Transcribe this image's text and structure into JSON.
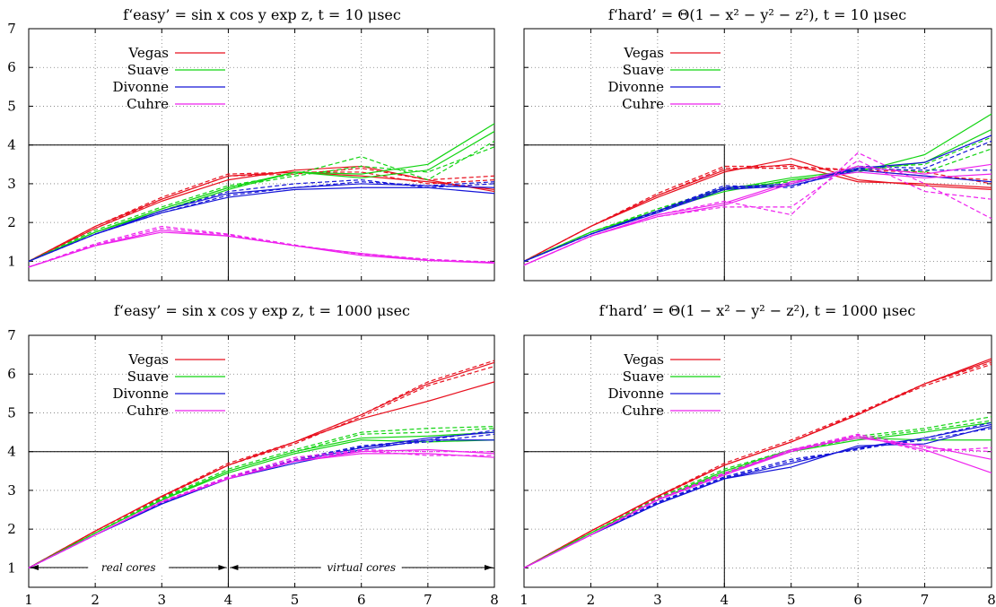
{
  "chart_data": [
    {
      "type": "line",
      "title": "f‘easy’ = sin x cos y exp z,    t = 10 μsec",
      "xlim": [
        1,
        8
      ],
      "ylim": [
        0.5,
        7
      ],
      "xticks": [
        "1",
        "2",
        "3",
        "4",
        "5",
        "6",
        "7",
        "8"
      ],
      "yticks": [
        "1",
        "2",
        "3",
        "4",
        "5",
        "6",
        "7"
      ],
      "legend": [
        "Vegas",
        "Suave",
        "Divonne",
        "Cuhre"
      ],
      "colors": {
        "Vegas": "#e8101e",
        "Suave": "#12d412",
        "Divonne": "#1414d8",
        "Cuhre": "#ee22ee"
      },
      "box": [
        [
          1,
          4
        ],
        [
          4,
          4
        ],
        [
          4,
          0.5
        ]
      ],
      "x": [
        1,
        2,
        3,
        4,
        5,
        6,
        7,
        8
      ],
      "series": [
        {
          "name": "Vegas",
          "style": "solid",
          "values": [
            1,
            1.9,
            2.6,
            3.2,
            3.3,
            3.2,
            3.05,
            2.85
          ]
        },
        {
          "name": "Vegas",
          "style": "solid",
          "values": [
            1,
            1.85,
            2.55,
            3.1,
            3.35,
            3.45,
            3.1,
            2.8
          ]
        },
        {
          "name": "Vegas",
          "style": "dashed",
          "values": [
            1,
            1.9,
            2.65,
            3.25,
            3.3,
            3.3,
            3.0,
            3.1
          ]
        },
        {
          "name": "Vegas",
          "style": "dashed",
          "values": [
            1,
            1.85,
            2.6,
            3.2,
            3.25,
            3.4,
            3.1,
            3.2
          ]
        },
        {
          "name": "Suave",
          "style": "solid",
          "values": [
            1,
            1.75,
            2.35,
            2.9,
            3.3,
            3.25,
            3.5,
            4.55
          ]
        },
        {
          "name": "Suave",
          "style": "solid",
          "values": [
            1,
            1.75,
            2.3,
            2.85,
            3.3,
            3.15,
            3.35,
            4.35
          ]
        },
        {
          "name": "Suave",
          "style": "dashed",
          "values": [
            1,
            1.8,
            2.4,
            2.95,
            3.25,
            3.7,
            3.1,
            4.1
          ]
        },
        {
          "name": "Suave",
          "style": "dashed",
          "values": [
            1,
            1.75,
            2.35,
            2.9,
            3.2,
            3.45,
            3.3,
            3.95
          ]
        },
        {
          "name": "Divonne",
          "style": "solid",
          "values": [
            1,
            1.7,
            2.25,
            2.65,
            2.85,
            2.9,
            2.9,
            2.75
          ]
        },
        {
          "name": "Divonne",
          "style": "solid",
          "values": [
            1,
            1.7,
            2.3,
            2.75,
            2.9,
            3.0,
            2.95,
            2.9
          ]
        },
        {
          "name": "Divonne",
          "style": "dashed",
          "values": [
            1,
            1.7,
            2.3,
            2.8,
            3.0,
            3.1,
            2.9,
            3.0
          ]
        },
        {
          "name": "Divonne",
          "style": "dashed",
          "values": [
            1,
            1.7,
            2.25,
            2.7,
            2.9,
            3.05,
            2.95,
            3.05
          ]
        },
        {
          "name": "Cuhre",
          "style": "solid",
          "values": [
            0.85,
            1.4,
            1.75,
            1.65,
            1.4,
            1.15,
            1.02,
            0.95
          ]
        },
        {
          "name": "Cuhre",
          "style": "solid",
          "values": [
            0.85,
            1.4,
            1.8,
            1.65,
            1.4,
            1.2,
            1.02,
            0.97
          ]
        },
        {
          "name": "Cuhre",
          "style": "dashed",
          "values": [
            0.85,
            1.45,
            1.9,
            1.7,
            1.42,
            1.18,
            1.05,
            0.95
          ]
        },
        {
          "name": "Cuhre",
          "style": "dashed",
          "values": [
            0.85,
            1.42,
            1.85,
            1.68,
            1.4,
            1.2,
            1.05,
            0.98
          ]
        }
      ]
    },
    {
      "type": "line",
      "title": "f‘hard’ = Θ(1 − x² − y² − z²),    t = 10 μsec",
      "xlim": [
        1,
        8
      ],
      "ylim": [
        0.5,
        7
      ],
      "xticks": [
        "1",
        "2",
        "3",
        "4",
        "5",
        "6",
        "7",
        "8"
      ],
      "yticks": [],
      "legend": [
        "Vegas",
        "Suave",
        "Divonne",
        "Cuhre"
      ],
      "colors": {
        "Vegas": "#e8101e",
        "Suave": "#12d412",
        "Divonne": "#1414d8",
        "Cuhre": "#ee22ee"
      },
      "box": [
        [
          1,
          4
        ],
        [
          4,
          4
        ],
        [
          4,
          0.5
        ]
      ],
      "x": [
        1,
        2,
        3,
        4,
        5,
        6,
        7,
        8
      ],
      "series": [
        {
          "name": "Vegas",
          "style": "solid",
          "values": [
            1,
            1.9,
            2.7,
            3.35,
            3.5,
            3.05,
            3.0,
            2.9
          ]
        },
        {
          "name": "Vegas",
          "style": "solid",
          "values": [
            1,
            1.9,
            2.65,
            3.3,
            3.65,
            3.1,
            2.95,
            2.85
          ]
        },
        {
          "name": "Vegas",
          "style": "dashed",
          "values": [
            1,
            1.9,
            2.75,
            3.45,
            3.45,
            3.35,
            3.2,
            3.1
          ]
        },
        {
          "name": "Vegas",
          "style": "dashed",
          "values": [
            1,
            1.9,
            2.7,
            3.4,
            3.4,
            3.35,
            3.3,
            3.0
          ]
        },
        {
          "name": "Suave",
          "style": "solid",
          "values": [
            1,
            1.75,
            2.3,
            2.8,
            3.1,
            3.3,
            3.75,
            4.8
          ]
        },
        {
          "name": "Suave",
          "style": "solid",
          "values": [
            1,
            1.75,
            2.3,
            2.85,
            3.15,
            3.35,
            3.55,
            4.4
          ]
        },
        {
          "name": "Suave",
          "style": "dashed",
          "values": [
            1,
            1.75,
            2.35,
            2.9,
            3.05,
            3.4,
            3.5,
            4.2
          ]
        },
        {
          "name": "Suave",
          "style": "dashed",
          "values": [
            1,
            1.75,
            2.35,
            2.85,
            3.0,
            3.45,
            3.3,
            3.9
          ]
        },
        {
          "name": "Divonne",
          "style": "solid",
          "values": [
            1,
            1.7,
            2.25,
            2.85,
            2.95,
            3.35,
            3.2,
            3.05
          ]
        },
        {
          "name": "Divonne",
          "style": "solid",
          "values": [
            1,
            1.7,
            2.3,
            2.9,
            3.0,
            3.4,
            3.55,
            4.25
          ]
        },
        {
          "name": "Divonne",
          "style": "dashed",
          "values": [
            1,
            1.7,
            2.3,
            2.95,
            2.9,
            3.45,
            3.4,
            4.1
          ]
        },
        {
          "name": "Divonne",
          "style": "dashed",
          "values": [
            1,
            1.7,
            2.28,
            2.88,
            2.95,
            3.38,
            3.35,
            3.35
          ]
        },
        {
          "name": "Cuhre",
          "style": "solid",
          "values": [
            0.9,
            1.65,
            2.15,
            2.45,
            3.0,
            3.45,
            3.25,
            3.5
          ]
        },
        {
          "name": "Cuhre",
          "style": "solid",
          "values": [
            0.9,
            1.65,
            2.2,
            2.5,
            3.05,
            3.3,
            3.15,
            3.25
          ]
        },
        {
          "name": "Cuhre",
          "style": "dashed",
          "values": [
            0.9,
            1.65,
            2.2,
            2.55,
            2.2,
            3.8,
            3.0,
            2.1
          ]
        },
        {
          "name": "Cuhre",
          "style": "dashed",
          "values": [
            0.9,
            1.65,
            2.15,
            2.4,
            2.4,
            3.6,
            2.8,
            2.6
          ]
        }
      ]
    },
    {
      "type": "line",
      "title": "f‘easy’ = sin x cos y exp z,    t = 1000 μsec",
      "xlim": [
        1,
        8
      ],
      "ylim": [
        0.5,
        7
      ],
      "xticks": [
        "1",
        "2",
        "3",
        "4",
        "5",
        "6",
        "7",
        "8"
      ],
      "yticks": [
        "1",
        "2",
        "3",
        "4",
        "5",
        "6",
        "7"
      ],
      "legend": [
        "Vegas",
        "Suave",
        "Divonne",
        "Cuhre"
      ],
      "colors": {
        "Vegas": "#e8101e",
        "Suave": "#12d412",
        "Divonne": "#1414d8",
        "Cuhre": "#ee22ee"
      },
      "box": [
        [
          1,
          4
        ],
        [
          4,
          4
        ],
        [
          4,
          0.5
        ]
      ],
      "x": [
        1,
        2,
        3,
        4,
        5,
        6,
        7,
        8
      ],
      "series": [
        {
          "name": "Vegas",
          "style": "solid",
          "values": [
            1,
            1.95,
            2.85,
            3.65,
            4.25,
            4.85,
            5.3,
            5.8
          ]
        },
        {
          "name": "Vegas",
          "style": "solid",
          "values": [
            1,
            1.95,
            2.85,
            3.65,
            4.25,
            4.95,
            5.75,
            6.3
          ]
        },
        {
          "name": "Vegas",
          "style": "dashed",
          "values": [
            1,
            1.95,
            2.85,
            3.7,
            4.25,
            4.95,
            5.8,
            6.35
          ]
        },
        {
          "name": "Vegas",
          "style": "dashed",
          "values": [
            1,
            1.95,
            2.82,
            3.65,
            4.2,
            4.9,
            5.7,
            6.2
          ]
        },
        {
          "name": "Suave",
          "style": "solid",
          "values": [
            1,
            1.9,
            2.75,
            3.5,
            4.0,
            4.35,
            4.4,
            4.5
          ]
        },
        {
          "name": "Suave",
          "style": "solid",
          "values": [
            1,
            1.9,
            2.75,
            3.45,
            3.95,
            4.3,
            4.25,
            4.3
          ]
        },
        {
          "name": "Suave",
          "style": "dashed",
          "values": [
            1,
            1.9,
            2.8,
            3.55,
            4.05,
            4.5,
            4.6,
            4.65
          ]
        },
        {
          "name": "Suave",
          "style": "dashed",
          "values": [
            1,
            1.9,
            2.78,
            3.5,
            4.0,
            4.45,
            4.5,
            4.6
          ]
        },
        {
          "name": "Divonne",
          "style": "solid",
          "values": [
            1,
            1.85,
            2.65,
            3.3,
            3.7,
            4.05,
            4.3,
            4.3
          ]
        },
        {
          "name": "Divonne",
          "style": "solid",
          "values": [
            1,
            1.85,
            2.65,
            3.3,
            3.75,
            4.1,
            4.35,
            4.5
          ]
        },
        {
          "name": "Divonne",
          "style": "dashed",
          "values": [
            1,
            1.85,
            2.7,
            3.35,
            3.8,
            4.15,
            4.3,
            4.55
          ]
        },
        {
          "name": "Divonne",
          "style": "dashed",
          "values": [
            1,
            1.85,
            2.68,
            3.32,
            3.78,
            4.12,
            4.25,
            4.45
          ]
        },
        {
          "name": "Cuhre",
          "style": "solid",
          "values": [
            1,
            1.85,
            2.7,
            3.3,
            3.75,
            3.95,
            3.95,
            3.85
          ]
        },
        {
          "name": "Cuhre",
          "style": "solid",
          "values": [
            1,
            1.85,
            2.7,
            3.3,
            3.75,
            4.0,
            4.05,
            3.95
          ]
        },
        {
          "name": "Cuhre",
          "style": "dashed",
          "values": [
            1,
            1.85,
            2.72,
            3.35,
            3.85,
            4.05,
            4.0,
            4.0
          ]
        },
        {
          "name": "Cuhre",
          "style": "dashed",
          "values": [
            1,
            1.85,
            2.7,
            3.32,
            3.8,
            4.02,
            3.9,
            3.9
          ]
        }
      ],
      "annotations": {
        "real_cores": "real cores",
        "virtual_cores": "virtual cores"
      }
    },
    {
      "type": "line",
      "title": "f‘hard’ = Θ(1 − x² − y² − z²),    t = 1000 μsec",
      "xlim": [
        1,
        8
      ],
      "ylim": [
        0.5,
        7
      ],
      "xticks": [
        "1",
        "2",
        "3",
        "4",
        "5",
        "6",
        "7",
        "8"
      ],
      "yticks": [],
      "legend": [
        "Vegas",
        "Suave",
        "Divonne",
        "Cuhre"
      ],
      "colors": {
        "Vegas": "#e8101e",
        "Suave": "#12d412",
        "Divonne": "#1414d8",
        "Cuhre": "#ee22ee"
      },
      "box": [
        [
          1,
          4
        ],
        [
          4,
          4
        ],
        [
          4,
          0.5
        ]
      ],
      "x": [
        1,
        2,
        3,
        4,
        5,
        6,
        7,
        8
      ],
      "series": [
        {
          "name": "Vegas",
          "style": "solid",
          "values": [
            1,
            1.95,
            2.85,
            3.65,
            4.25,
            4.95,
            5.75,
            6.35
          ]
        },
        {
          "name": "Vegas",
          "style": "solid",
          "values": [
            1,
            1.95,
            2.85,
            3.65,
            4.25,
            4.95,
            5.75,
            6.4
          ]
        },
        {
          "name": "Vegas",
          "style": "dashed",
          "values": [
            1,
            1.95,
            2.85,
            3.7,
            4.3,
            5.0,
            5.75,
            6.3
          ]
        },
        {
          "name": "Vegas",
          "style": "dashed",
          "values": [
            1,
            1.95,
            2.82,
            3.65,
            4.25,
            4.98,
            5.7,
            6.25
          ]
        },
        {
          "name": "Suave",
          "style": "solid",
          "values": [
            1,
            1.9,
            2.75,
            3.5,
            4.05,
            4.35,
            4.3,
            4.3
          ]
        },
        {
          "name": "Suave",
          "style": "solid",
          "values": [
            1,
            1.9,
            2.75,
            3.45,
            4.0,
            4.3,
            4.5,
            4.75
          ]
        },
        {
          "name": "Suave",
          "style": "dashed",
          "values": [
            1,
            1.9,
            2.8,
            3.55,
            4.05,
            4.4,
            4.6,
            4.9
          ]
        },
        {
          "name": "Suave",
          "style": "dashed",
          "values": [
            1,
            1.9,
            2.78,
            3.5,
            4.0,
            4.35,
            4.55,
            4.8
          ]
        },
        {
          "name": "Divonne",
          "style": "solid",
          "values": [
            1,
            1.85,
            2.65,
            3.3,
            3.6,
            4.15,
            4.2,
            4.65
          ]
        },
        {
          "name": "Divonne",
          "style": "solid",
          "values": [
            1,
            1.85,
            2.65,
            3.3,
            3.7,
            4.1,
            4.35,
            4.7
          ]
        },
        {
          "name": "Divonne",
          "style": "dashed",
          "values": [
            1,
            1.85,
            2.7,
            3.35,
            3.8,
            4.05,
            4.35,
            4.75
          ]
        },
        {
          "name": "Divonne",
          "style": "dashed",
          "values": [
            1,
            1.85,
            2.68,
            3.32,
            3.75,
            4.08,
            4.3,
            4.6
          ]
        },
        {
          "name": "Cuhre",
          "style": "solid",
          "values": [
            1,
            1.85,
            2.75,
            3.4,
            4.0,
            4.4,
            4.05,
            3.45
          ]
        },
        {
          "name": "Cuhre",
          "style": "solid",
          "values": [
            1,
            1.85,
            2.75,
            3.4,
            4.05,
            4.35,
            4.15,
            3.8
          ]
        },
        {
          "name": "Cuhre",
          "style": "dashed",
          "values": [
            1,
            1.85,
            2.78,
            3.45,
            4.05,
            4.45,
            4.1,
            4.0
          ]
        },
        {
          "name": "Cuhre",
          "style": "dashed",
          "values": [
            1,
            1.85,
            2.76,
            3.42,
            4.02,
            4.42,
            4.0,
            4.1
          ]
        }
      ]
    }
  ]
}
